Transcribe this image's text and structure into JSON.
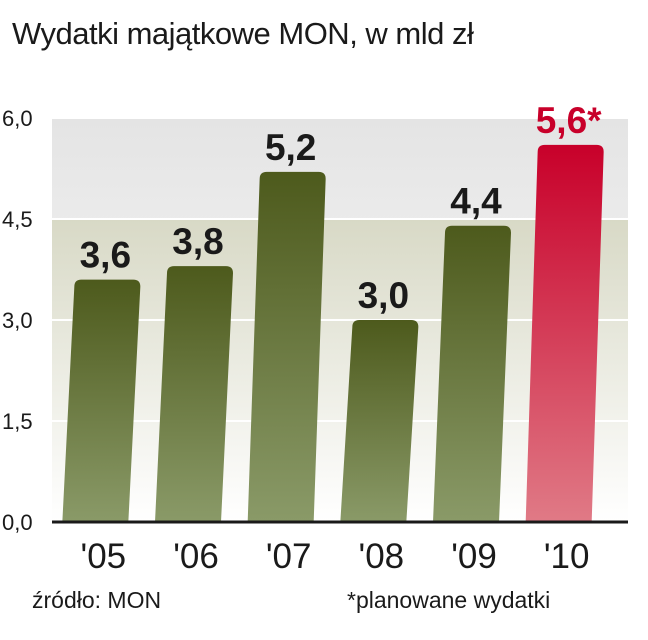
{
  "title": "Wydatki majątkowe MON, w mld zł",
  "source": "źródło: MON",
  "footnote": "*planowane wydatki",
  "colors": {
    "bar_top": "#4d5a1c",
    "bar_bottom": "#8a9a68",
    "highlight_top": "#c8002a",
    "highlight_bottom": "#e07a86",
    "highlight_label": "#c8002a",
    "band_light": "#e4e4e4",
    "band_olive": "#d8d9c6",
    "axis": "#1a1a1a"
  },
  "chart_data": {
    "type": "bar",
    "categories": [
      "'05",
      "'06",
      "'07",
      "'08",
      "'09",
      "'10"
    ],
    "values": [
      3.6,
      3.8,
      5.2,
      3.0,
      4.4,
      5.6
    ],
    "data_labels": [
      "3,6",
      "3,8",
      "5,2",
      "3,0",
      "4,4",
      "5,6*"
    ],
    "highlight_index": 5,
    "yticks": [
      "0,0",
      "1,5",
      "3,0",
      "4,5",
      "6,0"
    ],
    "ytick_values": [
      0,
      1.5,
      3.0,
      4.5,
      6.0
    ],
    "ylim": [
      0,
      6.0
    ],
    "title": "Wydatki majątkowe MON, w mld zł",
    "grid": true,
    "legend": "none"
  }
}
